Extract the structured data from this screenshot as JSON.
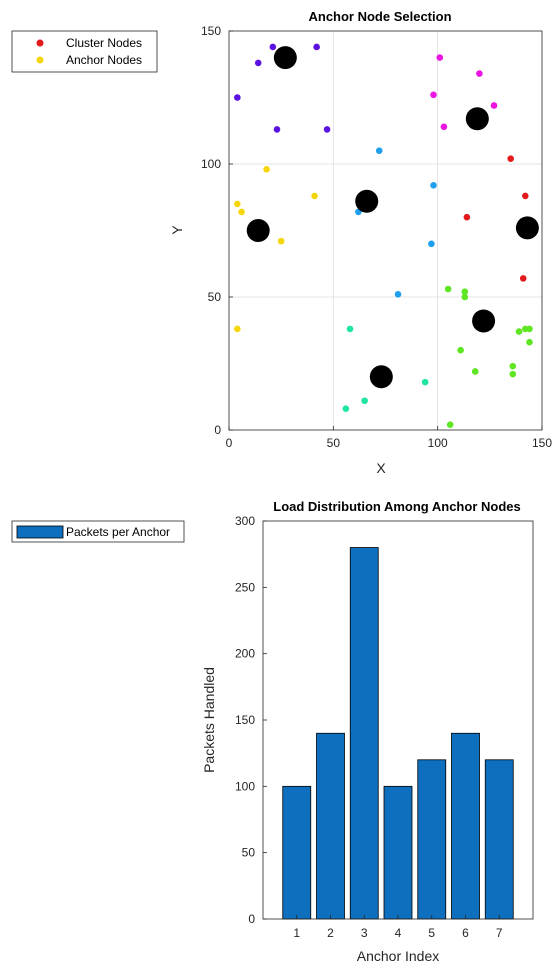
{
  "chart_data": [
    {
      "type": "scatter",
      "title": "Anchor Node Selection",
      "xlabel": "X",
      "ylabel": "Y",
      "xlim": [
        0,
        150
      ],
      "ylim": [
        0,
        150
      ],
      "xticks": [
        "0",
        "50",
        "100",
        "150"
      ],
      "yticks": [
        "0",
        "50",
        "100",
        "150"
      ],
      "grid": true,
      "legend_position": "outside-top-left",
      "legend": [
        {
          "label": "Cluster Nodes",
          "color": "#e31a1c"
        },
        {
          "label": "Anchor Nodes",
          "color": "#f5d60a"
        }
      ],
      "points": [
        {
          "x": 21,
          "y": 144,
          "color": "#5b12e0"
        },
        {
          "x": 42,
          "y": 144,
          "color": "#5b12e0"
        },
        {
          "x": 14,
          "y": 138,
          "color": "#5b12e0"
        },
        {
          "x": 4,
          "y": 125,
          "color": "#5b12e0"
        },
        {
          "x": 23,
          "y": 113,
          "color": "#5b12e0"
        },
        {
          "x": 47,
          "y": 113,
          "color": "#5b12e0"
        },
        {
          "x": 101,
          "y": 140,
          "color": "#ea16e0"
        },
        {
          "x": 120,
          "y": 134,
          "color": "#ea16e0"
        },
        {
          "x": 98,
          "y": 126,
          "color": "#ea16e0"
        },
        {
          "x": 127,
          "y": 122,
          "color": "#ea16e0"
        },
        {
          "x": 103,
          "y": 114,
          "color": "#ea16e0"
        },
        {
          "x": 135,
          "y": 102,
          "color": "#e31a1c"
        },
        {
          "x": 142,
          "y": 88,
          "color": "#e31a1c"
        },
        {
          "x": 114,
          "y": 80,
          "color": "#e31a1c"
        },
        {
          "x": 141,
          "y": 57,
          "color": "#e31a1c"
        },
        {
          "x": 18,
          "y": 98,
          "color": "#f5d60a"
        },
        {
          "x": 41,
          "y": 88,
          "color": "#f5d60a"
        },
        {
          "x": 4,
          "y": 85,
          "color": "#f5d60a"
        },
        {
          "x": 6,
          "y": 82,
          "color": "#f5d60a"
        },
        {
          "x": 25,
          "y": 71,
          "color": "#f5d60a"
        },
        {
          "x": 4,
          "y": 38,
          "color": "#f5d60a"
        },
        {
          "x": 72,
          "y": 105,
          "color": "#1ea0ee"
        },
        {
          "x": 98,
          "y": 92,
          "color": "#1ea0ee"
        },
        {
          "x": 62,
          "y": 82,
          "color": "#1ea0ee"
        },
        {
          "x": 97,
          "y": 70,
          "color": "#1ea0ee"
        },
        {
          "x": 81,
          "y": 51,
          "color": "#1ea0ee"
        },
        {
          "x": 58,
          "y": 38,
          "color": "#1ee6a0"
        },
        {
          "x": 94,
          "y": 18,
          "color": "#1ee6a0"
        },
        {
          "x": 65,
          "y": 11,
          "color": "#1ee6a0"
        },
        {
          "x": 56,
          "y": 8,
          "color": "#1ee6a0"
        },
        {
          "x": 105,
          "y": 53,
          "color": "#5ee622"
        },
        {
          "x": 113,
          "y": 52,
          "color": "#5ee622"
        },
        {
          "x": 113,
          "y": 50,
          "color": "#5ee622"
        },
        {
          "x": 142,
          "y": 38,
          "color": "#5ee622"
        },
        {
          "x": 144,
          "y": 38,
          "color": "#5ee622"
        },
        {
          "x": 139,
          "y": 37,
          "color": "#5ee622"
        },
        {
          "x": 144,
          "y": 33,
          "color": "#5ee622"
        },
        {
          "x": 111,
          "y": 30,
          "color": "#5ee622"
        },
        {
          "x": 136,
          "y": 24,
          "color": "#5ee622"
        },
        {
          "x": 118,
          "y": 22,
          "color": "#5ee622"
        },
        {
          "x": 136,
          "y": 21,
          "color": "#5ee622"
        },
        {
          "x": 106,
          "y": 2,
          "color": "#5ee622"
        }
      ],
      "anchors": [
        {
          "x": 27,
          "y": 140
        },
        {
          "x": 119,
          "y": 117
        },
        {
          "x": 66,
          "y": 86
        },
        {
          "x": 14,
          "y": 75
        },
        {
          "x": 143,
          "y": 76
        },
        {
          "x": 122,
          "y": 41
        },
        {
          "x": 73,
          "y": 20
        }
      ],
      "anchor_color": "#000000"
    },
    {
      "type": "bar",
      "title": "Load Distribution Among Anchor Nodes",
      "xlabel": "Anchor Index",
      "ylabel": "Packets Handled",
      "categories": [
        "1",
        "2",
        "3",
        "4",
        "5",
        "6",
        "7"
      ],
      "values": [
        100,
        140,
        280,
        100,
        120,
        140,
        120
      ],
      "ylim": [
        0,
        300
      ],
      "yticks": [
        "0",
        "50",
        "100",
        "150",
        "200",
        "250",
        "300"
      ],
      "grid": false,
      "legend_position": "outside-top-left",
      "legend": [
        {
          "label": "Packets per Anchor",
          "color": "#0d6fbd"
        }
      ],
      "bar_color": "#0d6fbd"
    }
  ]
}
